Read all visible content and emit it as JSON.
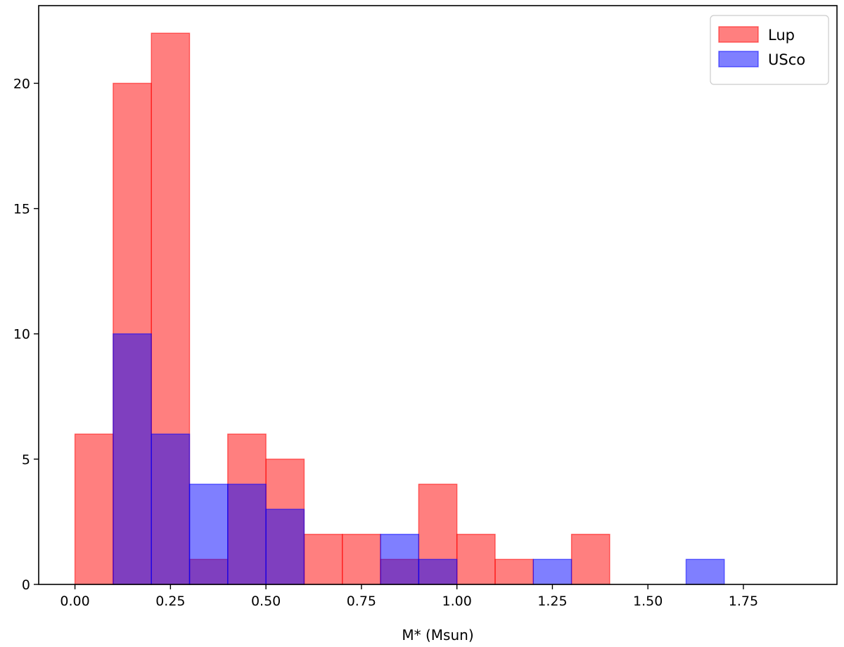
{
  "chart_data": {
    "type": "histogram",
    "title": "",
    "xlabel": "M* (Msun)",
    "ylabel": "",
    "xlim": [
      -0.095,
      1.995
    ],
    "ylim": [
      0,
      23.1
    ],
    "bin_width": 0.1,
    "bins": [
      0.0,
      0.1,
      0.2,
      0.3,
      0.4,
      0.5,
      0.6,
      0.7,
      0.8,
      0.9,
      1.0,
      1.1,
      1.2,
      1.3,
      1.4,
      1.5,
      1.6
    ],
    "x_ticks": [
      0.0,
      0.25,
      0.5,
      0.75,
      1.0,
      1.25,
      1.5,
      1.75
    ],
    "x_tick_labels": [
      "0.00",
      "0.25",
      "0.50",
      "0.75",
      "1.00",
      "1.25",
      "1.50",
      "1.75"
    ],
    "y_ticks": [
      0,
      5,
      10,
      15,
      20
    ],
    "y_tick_labels": [
      "0",
      "5",
      "10",
      "15",
      "20"
    ],
    "grid": false,
    "legend_position": "top-right",
    "series": [
      {
        "name": "Lup",
        "color": "#ff0000",
        "alpha": 0.5,
        "values": [
          6,
          20,
          22,
          1,
          6,
          5,
          2,
          2,
          1,
          4,
          2,
          1,
          0,
          2,
          0,
          0,
          0
        ]
      },
      {
        "name": "USco",
        "color": "#0000ff",
        "alpha": 0.5,
        "values": [
          0,
          10,
          6,
          4,
          4,
          3,
          0,
          0,
          2,
          1,
          0,
          0,
          1,
          0,
          0,
          0,
          1
        ]
      }
    ]
  }
}
